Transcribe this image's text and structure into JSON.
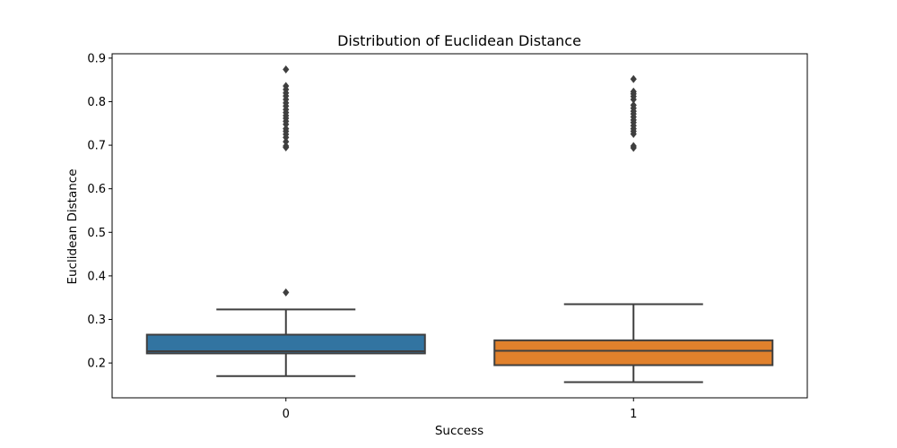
{
  "chart_data": {
    "type": "box",
    "title": "Distribution of Euclidean Distance",
    "xlabel": "Success",
    "ylabel": "Euclidean Distance",
    "categories": [
      "0",
      "1"
    ],
    "ylim": [
      0.12,
      0.91
    ],
    "yticks": [
      0.2,
      0.3,
      0.4,
      0.5,
      0.6,
      0.7,
      0.8,
      0.9
    ],
    "ytick_labels": [
      "0.2",
      "0.3",
      "0.4",
      "0.5",
      "0.6",
      "0.7",
      "0.8",
      "0.9"
    ],
    "grid": false,
    "legend": "none",
    "series": [
      {
        "category": "0",
        "color": "#3274a1",
        "whisker_low": 0.17,
        "q1": 0.222,
        "median": 0.227,
        "q3": 0.265,
        "whisker_high": 0.323,
        "outliers": [
          0.362,
          0.695,
          0.698,
          0.708,
          0.718,
          0.725,
          0.732,
          0.738,
          0.748,
          0.755,
          0.762,
          0.768,
          0.775,
          0.782,
          0.79,
          0.797,
          0.805,
          0.813,
          0.82,
          0.828,
          0.836,
          0.874
        ]
      },
      {
        "category": "1",
        "color": "#e1812c",
        "whisker_low": 0.156,
        "q1": 0.195,
        "median": 0.228,
        "q3": 0.252,
        "whisker_high": 0.335,
        "outliers": [
          0.694,
          0.698,
          0.726,
          0.732,
          0.738,
          0.745,
          0.752,
          0.758,
          0.765,
          0.772,
          0.778,
          0.785,
          0.792,
          0.805,
          0.812,
          0.818,
          0.823,
          0.852
        ]
      }
    ]
  }
}
